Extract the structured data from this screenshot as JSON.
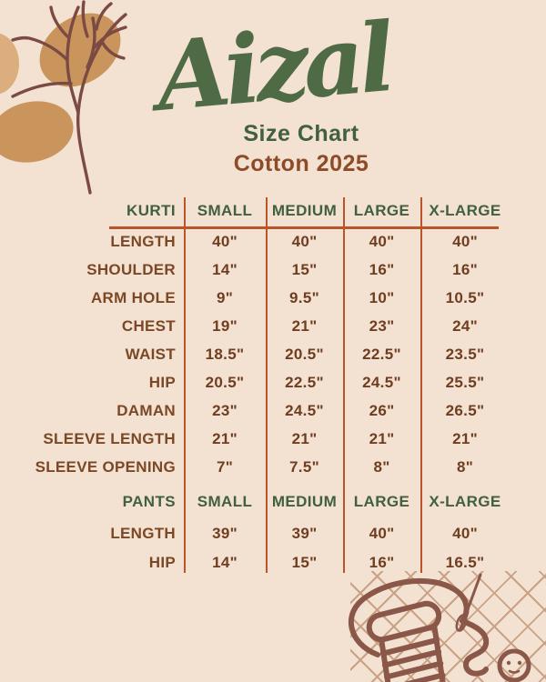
{
  "header": {
    "brand": "Aizal",
    "subtitle": "Size Chart",
    "edition": "Cotton 2025"
  },
  "colors": {
    "background": "#f3e1d2",
    "table_header_green": "#41603f",
    "script_title_green": "#4f6b45",
    "edition_brown": "#8d4b28",
    "label_brown": "#7b4826",
    "value_brown": "#6f3e21",
    "divider_rust": "#bc5429",
    "blob_tan": "#c9955c",
    "branch_maroon": "#7b4a42"
  },
  "decorations": {
    "top_left": "branch-with-abstract-blobs",
    "bottom_right": "thread-spool-needle-button-on-lattice"
  },
  "chart_data": {
    "type": "table",
    "sections": [
      {
        "name": "KURTI",
        "columns": [
          "SMALL",
          "MEDIUM",
          "LARGE",
          "X-LARGE"
        ],
        "rows": [
          {
            "label": "LENGTH",
            "values": [
              "40\"",
              "40\"",
              "40\"",
              "40\""
            ]
          },
          {
            "label": "SHOULDER",
            "values": [
              "14\"",
              "15\"",
              "16\"",
              "16\""
            ]
          },
          {
            "label": "ARM HOLE",
            "values": [
              "9\"",
              "9.5\"",
              "10\"",
              "10.5\""
            ]
          },
          {
            "label": "CHEST",
            "values": [
              "19\"",
              "21\"",
              "23\"",
              "24\""
            ]
          },
          {
            "label": "WAIST",
            "values": [
              "18.5\"",
              "20.5\"",
              "22.5\"",
              "23.5\""
            ]
          },
          {
            "label": "HIP",
            "values": [
              "20.5\"",
              "22.5\"",
              "24.5\"",
              "25.5\""
            ]
          },
          {
            "label": "DAMAN",
            "values": [
              "23\"",
              "24.5\"",
              "26\"",
              "26.5\""
            ]
          },
          {
            "label": "SLEEVE LENGTH",
            "values": [
              "21\"",
              "21\"",
              "21\"",
              "21\""
            ]
          },
          {
            "label": "SLEEVE OPENING",
            "values": [
              "7\"",
              "7.5\"",
              "8\"",
              "8\""
            ]
          }
        ]
      },
      {
        "name": "PANTS",
        "columns": [
          "SMALL",
          "MEDIUM",
          "LARGE",
          "X-LARGE"
        ],
        "rows": [
          {
            "label": "LENGTH",
            "values": [
              "39\"",
              "39\"",
              "40\"",
              "40\""
            ]
          },
          {
            "label": "HIP",
            "values": [
              "14\"",
              "15\"",
              "16\"",
              "16.5\""
            ]
          }
        ]
      }
    ]
  }
}
